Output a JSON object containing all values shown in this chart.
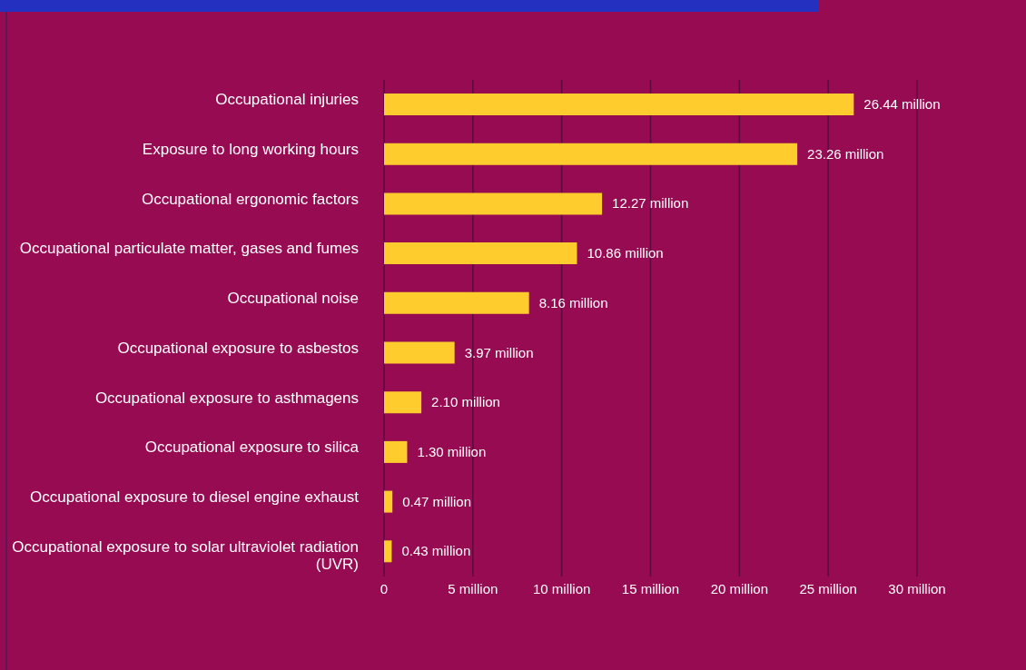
{
  "chart_data": {
    "type": "bar",
    "orientation": "horizontal",
    "categories": [
      "Occupational injuries",
      "Exposure to long working hours",
      "Occupational ergonomic factors",
      "Occupational particulate matter, gases and fumes",
      "Occupational noise",
      "Occupational exposure to asbestos",
      "Occupational exposure to asthmagens",
      "Occupational exposure to silica",
      "Occupational exposure to diesel engine exhaust",
      "Occupational exposure to solar ultraviolet radiation (UVR)"
    ],
    "values": [
      26.44,
      23.26,
      12.27,
      10.86,
      8.16,
      3.97,
      2.1,
      1.3,
      0.47,
      0.43
    ],
    "value_labels": [
      "26.44 million",
      "23.26 million",
      "12.27 million",
      "10.86 million",
      "8.16 million",
      "3.97 million",
      "2.10 million",
      "1.30 million",
      "0.47 million",
      "0.43 million"
    ],
    "color": "#ffcc2e",
    "xlim": [
      0,
      30
    ],
    "xticks": [
      0,
      {
        "value": 5,
        "label": "5 million"
      },
      {
        "value": 10,
        "label": "10 million"
      },
      {
        "value": 15,
        "label": "15 million"
      },
      {
        "value": 20,
        "label": "20 million"
      },
      {
        "value": 25,
        "label": "25 million"
      },
      {
        "value": 30,
        "label": "30 million"
      }
    ],
    "grid": "x",
    "legend": false
  }
}
